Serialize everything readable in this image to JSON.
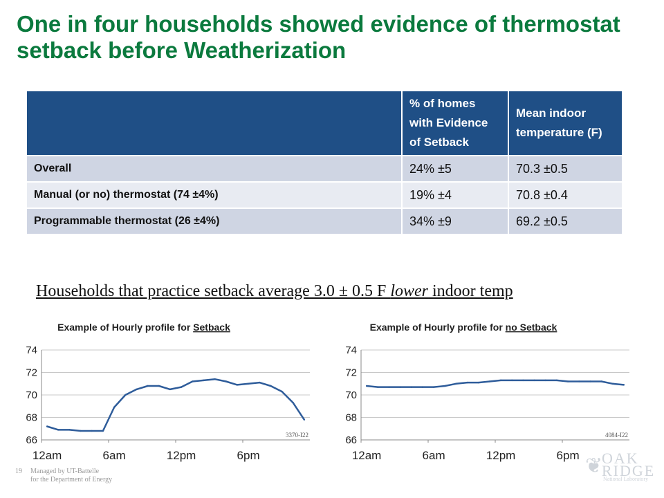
{
  "title": "One in four households showed evidence of thermostat setback before Weatherization",
  "table": {
    "headers": [
      "",
      "% of homes with Evidence of Setback",
      "Mean indoor temperature (F)"
    ],
    "rows": [
      {
        "label": "Overall",
        "setback": "24% ±5",
        "temp": "70.3 ±0.5"
      },
      {
        "label": "Manual (or no) thermostat (74 ±4%)",
        "setback": "19% ±4",
        "temp": "70.8 ±0.4"
      },
      {
        "label": "Programmable thermostat  (26 ±4%)",
        "setback": "34% ±9",
        "temp": "69.2 ±0.5"
      }
    ]
  },
  "note": {
    "part1": "Households that practice setback average 3.0 ± 0.5 F ",
    "emph": "lower",
    "part2": " indoor temp"
  },
  "chart_data": [
    {
      "type": "line",
      "title_prefix": "Example of Hourly profile for ",
      "title_emph": "Setback",
      "x": [
        0,
        1,
        2,
        3,
        4,
        5,
        6,
        7,
        8,
        9,
        10,
        11,
        12,
        13,
        14,
        15,
        16,
        17,
        18,
        19,
        20,
        21,
        22,
        23
      ],
      "y": [
        67.2,
        66.9,
        66.9,
        66.8,
        66.8,
        66.8,
        68.9,
        70.0,
        70.5,
        70.8,
        70.8,
        70.5,
        70.7,
        71.2,
        71.3,
        71.4,
        71.2,
        70.9,
        71.0,
        71.1,
        70.8,
        70.3,
        69.3,
        67.8
      ],
      "ylim": [
        66,
        74
      ],
      "yticks": [
        "66",
        "68",
        "70",
        "72",
        "74"
      ],
      "xticks": [
        {
          "x": 0,
          "label": "12am"
        },
        {
          "x": 6,
          "label": "6am"
        },
        {
          "x": 12,
          "label": "12pm"
        },
        {
          "x": 18,
          "label": "6pm"
        }
      ],
      "id_label": "3370-I22",
      "line_color": "#2e5c9a",
      "grid": true
    },
    {
      "type": "line",
      "title_prefix": "Example of Hourly profile for ",
      "title_emph": "no Setback",
      "x": [
        0,
        1,
        2,
        3,
        4,
        5,
        6,
        7,
        8,
        9,
        10,
        11,
        12,
        13,
        14,
        15,
        16,
        17,
        18,
        19,
        20,
        21,
        22,
        23
      ],
      "y": [
        70.8,
        70.7,
        70.7,
        70.7,
        70.7,
        70.7,
        70.7,
        70.8,
        71.0,
        71.1,
        71.1,
        71.2,
        71.3,
        71.3,
        71.3,
        71.3,
        71.3,
        71.3,
        71.2,
        71.2,
        71.2,
        71.2,
        71.0,
        70.9
      ],
      "ylim": [
        66,
        74
      ],
      "yticks": [
        "66",
        "68",
        "70",
        "72",
        "74"
      ],
      "xticks": [
        {
          "x": 0,
          "label": "12am"
        },
        {
          "x": 6,
          "label": "6am"
        },
        {
          "x": 12,
          "label": "12pm"
        },
        {
          "x": 18,
          "label": "6pm"
        }
      ],
      "id_label": "4084-I22",
      "line_color": "#2e5c9a",
      "grid": true
    }
  ],
  "footer": {
    "page_number": "19",
    "line1": "Managed by UT-Battelle",
    "line2": "for the Department of Energy"
  },
  "logo": {
    "word1": "OAK",
    "word2": "RIDGE",
    "tagline": "National Laboratory",
    "icon": "leaf-icon"
  }
}
